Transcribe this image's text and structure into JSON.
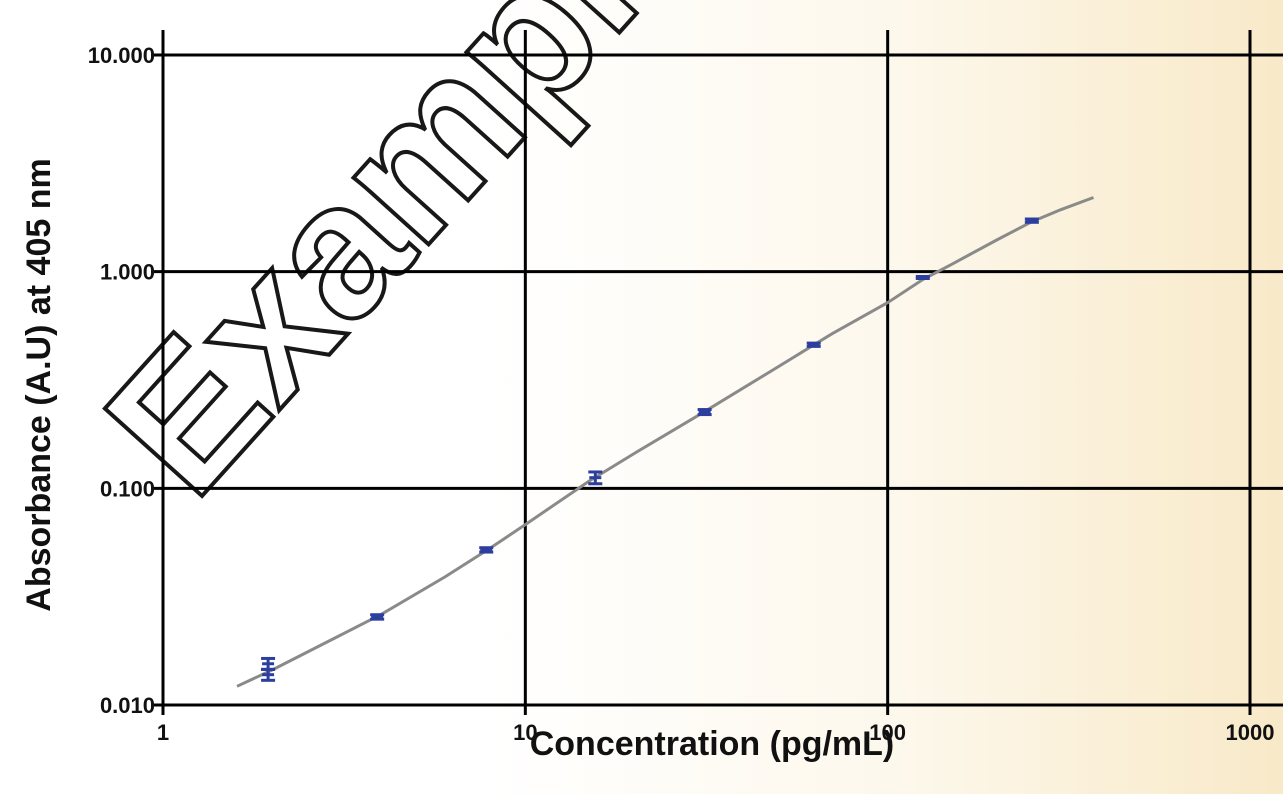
{
  "watermark": "Example",
  "chart_data": {
    "type": "scatter",
    "xscale": "log",
    "yscale": "log",
    "xlim": [
      1,
      1000
    ],
    "ylim": [
      0.01,
      10
    ],
    "xticks": [
      1,
      10,
      100,
      1000
    ],
    "xtick_labels": [
      "1",
      "10",
      "100",
      "1000"
    ],
    "yticks": [
      0.01,
      0.1,
      1,
      10
    ],
    "ytick_labels": [
      "0.010",
      "0.100",
      "1.000",
      "10.000"
    ],
    "xlabel": "Concentration (pg/mL)",
    "ylabel": "Absorbance (A.U) at 405 nm",
    "grid": true,
    "marker_color": "#2d3f9e",
    "curve_color": "#8a8a8a",
    "series": [
      {
        "points": [
          {
            "x": 1.95,
            "y": 0.0155,
            "err": 0.0009
          },
          {
            "x": 1.95,
            "y": 0.0138,
            "err": 0.0008
          },
          {
            "x": 3.9,
            "y": 0.0255,
            "err": 0.0006
          },
          {
            "x": 7.8,
            "y": 0.052,
            "err": 0.0012
          },
          {
            "x": 15.6,
            "y": 0.112,
            "err": 0.007
          },
          {
            "x": 31.25,
            "y": 0.225,
            "err": 0.006
          },
          {
            "x": 62.5,
            "y": 0.46,
            "err": 0.008
          },
          {
            "x": 125,
            "y": 0.94,
            "err": 0.01
          },
          {
            "x": 250,
            "y": 1.72,
            "err": 0.03
          }
        ]
      }
    ],
    "fit_curve": [
      {
        "x": 1.6,
        "y": 0.0122
      },
      {
        "x": 2,
        "y": 0.0145
      },
      {
        "x": 3,
        "y": 0.0205
      },
      {
        "x": 4,
        "y": 0.0262
      },
      {
        "x": 6,
        "y": 0.039
      },
      {
        "x": 8,
        "y": 0.053
      },
      {
        "x": 10,
        "y": 0.068
      },
      {
        "x": 15,
        "y": 0.108
      },
      {
        "x": 20,
        "y": 0.145
      },
      {
        "x": 30,
        "y": 0.217
      },
      {
        "x": 50,
        "y": 0.365
      },
      {
        "x": 70,
        "y": 0.515
      },
      {
        "x": 100,
        "y": 0.72
      },
      {
        "x": 125,
        "y": 0.92
      },
      {
        "x": 150,
        "y": 1.08
      },
      {
        "x": 200,
        "y": 1.4
      },
      {
        "x": 250,
        "y": 1.7
      },
      {
        "x": 300,
        "y": 1.93
      },
      {
        "x": 370,
        "y": 2.2
      }
    ]
  }
}
